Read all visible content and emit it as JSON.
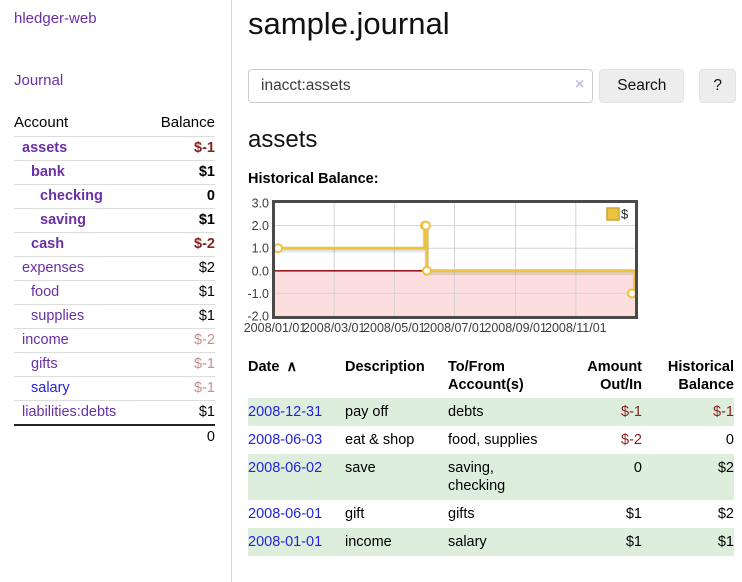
{
  "app": {
    "brand": "hledger-web",
    "nav_journal": "Journal"
  },
  "sidebar": {
    "headers": {
      "account": "Account",
      "balance": "Balance"
    },
    "accounts": [
      {
        "name": "assets",
        "balance": "$-1",
        "level": 1,
        "bold": true,
        "balance_style": "neg",
        "link_style": "visited"
      },
      {
        "name": "bank",
        "balance": "$1",
        "level": 2,
        "bold": true,
        "balance_style": "pos",
        "link_style": "visited"
      },
      {
        "name": "checking",
        "balance": "0",
        "level": 3,
        "bold": true,
        "balance_style": "pos",
        "link_style": "visited"
      },
      {
        "name": "saving",
        "balance": "$1",
        "level": 3,
        "bold": true,
        "balance_style": "pos",
        "link_style": "visited"
      },
      {
        "name": "cash",
        "balance": "$-2",
        "level": 2,
        "bold": true,
        "balance_style": "neg",
        "link_style": "visited"
      },
      {
        "name": "expenses",
        "balance": "$2",
        "level": 1,
        "bold": false,
        "balance_style": "pos",
        "link_style": "visited"
      },
      {
        "name": "food",
        "balance": "$1",
        "level": 2,
        "bold": false,
        "balance_style": "pos",
        "link_style": "visited"
      },
      {
        "name": "supplies",
        "balance": "$1",
        "level": 2,
        "bold": false,
        "balance_style": "pos",
        "link_style": "visited"
      },
      {
        "name": "income",
        "balance": "$-2",
        "level": 1,
        "bold": false,
        "balance_style": "soft",
        "link_style": "visited"
      },
      {
        "name": "gifts",
        "balance": "$-1",
        "level": 2,
        "bold": false,
        "balance_style": "soft",
        "link_style": "visited"
      },
      {
        "name": "salary",
        "balance": "$-1",
        "level": 2,
        "bold": false,
        "balance_style": "soft",
        "link_style": "unvisited"
      },
      {
        "name": "liabilities:debts",
        "balance": "$1",
        "level": 1,
        "bold": false,
        "balance_style": "pos",
        "link_style": "visited"
      }
    ],
    "total": "0"
  },
  "header": {
    "title": "sample.journal"
  },
  "search": {
    "value": "inacct:assets",
    "clear_icon": "×",
    "button_label": "Search",
    "help_label": "?"
  },
  "account_page": {
    "title": "assets",
    "section_label": "Historical Balance:"
  },
  "chart_data": {
    "type": "line",
    "step": true,
    "title": "Historical Balance",
    "series": [
      {
        "name": "$",
        "color": "#edc240",
        "points": [
          [
            "2008-01-01",
            1
          ],
          [
            "2008-06-01",
            2
          ],
          [
            "2008-06-02",
            2
          ],
          [
            "2008-06-03",
            0
          ],
          [
            "2008-12-31",
            -1
          ]
        ]
      }
    ],
    "xlim": [
      "2008-01-01",
      "2008-12-31"
    ],
    "ylim": [
      -2,
      3
    ],
    "yticks": [
      "3.0",
      "2.0",
      "1.0",
      "0.0",
      "-1.0",
      "-2.0"
    ],
    "xticks": [
      {
        "date": "2008-01-01",
        "label": "2008/01/01"
      },
      {
        "date": "2008-03-01",
        "label": "2008/03/01"
      },
      {
        "date": "2008-05-01",
        "label": "2008/05/01"
      },
      {
        "date": "2008-07-01",
        "label": "2008/07/01"
      },
      {
        "date": "2008-09-01",
        "label": "2008/09/01"
      },
      {
        "date": "2008-11-01",
        "label": "2008/11/01"
      }
    ],
    "legend": {
      "label": "$",
      "position": "top-right"
    },
    "grid": true,
    "colors": {
      "negative_region": "#fcdede",
      "zero_line": "#9b1c1c",
      "gridline": "#d4d4d4",
      "border": "#4a4a4a",
      "tick_text": "#3d3d3d",
      "legend_swatch_border": "#c9a52f"
    }
  },
  "transactions": {
    "headers": {
      "date": "Date",
      "sort_icon": "∧",
      "description": "Description",
      "accounts": "To/From\nAccount(s)",
      "amount": "Amount\nOut/In",
      "balance": "Historical\nBalance"
    },
    "rows": [
      {
        "date": "2008-12-31",
        "description": "pay off",
        "accounts": "debts",
        "amount": "$-1",
        "balance": "$-1",
        "amount_neg": true,
        "balance_neg": true,
        "shaded": true
      },
      {
        "date": "2008-06-03",
        "description": "eat & shop",
        "accounts": "food, supplies",
        "amount": "$-2",
        "balance": "0",
        "amount_neg": true,
        "balance_neg": false,
        "shaded": false
      },
      {
        "date": "2008-06-02",
        "description": "save",
        "accounts": "saving,\nchecking",
        "amount": "0",
        "balance": "$2",
        "amount_neg": false,
        "balance_neg": false,
        "shaded": true
      },
      {
        "date": "2008-06-01",
        "description": "gift",
        "accounts": "gifts",
        "amount": "$1",
        "balance": "$2",
        "amount_neg": false,
        "balance_neg": false,
        "shaded": false
      },
      {
        "date": "2008-01-01",
        "description": "income",
        "accounts": "salary",
        "amount": "$1",
        "balance": "$1",
        "amount_neg": false,
        "balance_neg": false,
        "shaded": true
      }
    ]
  }
}
